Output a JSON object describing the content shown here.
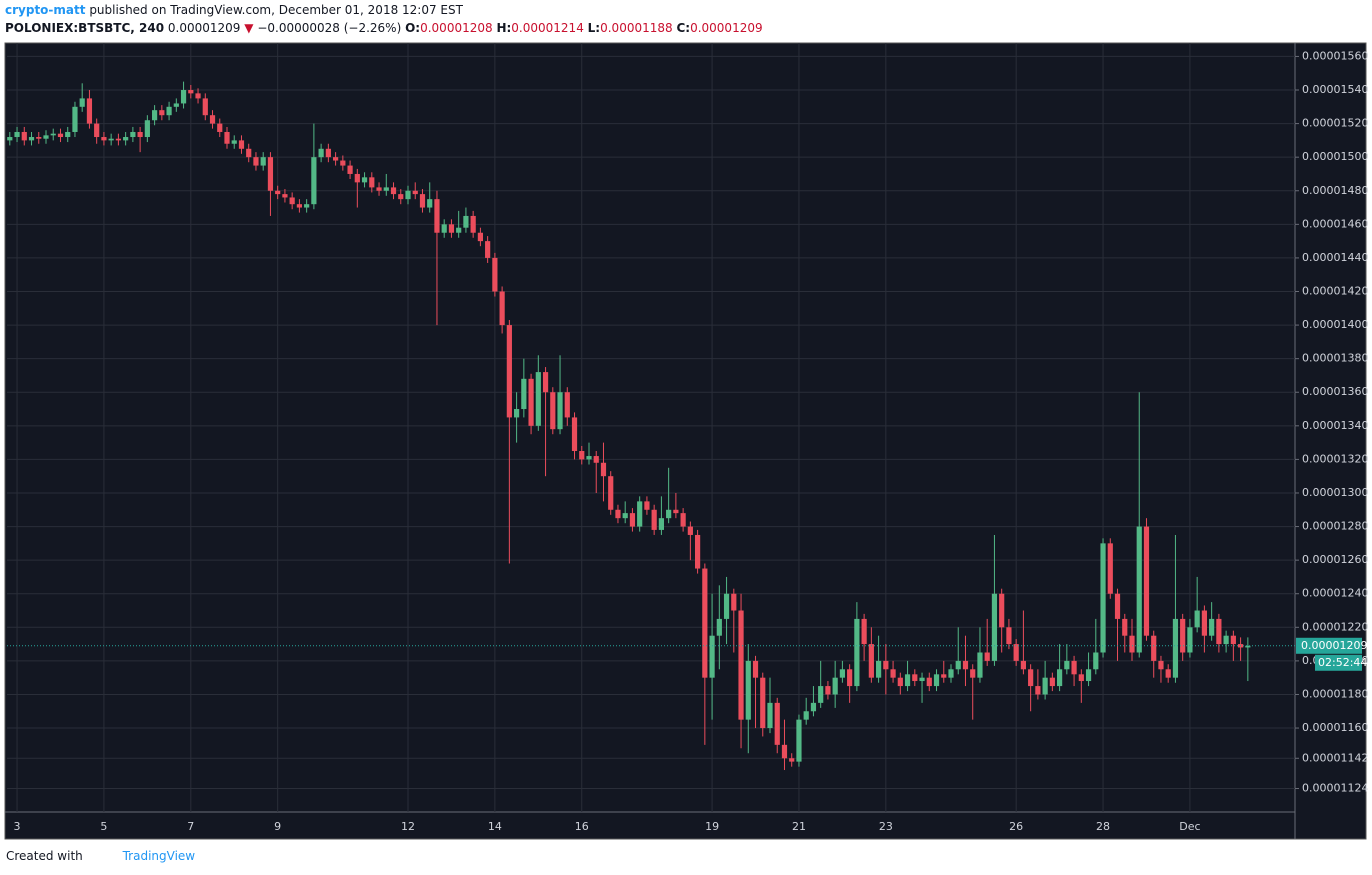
{
  "header": {
    "author": "crypto-matt",
    "published": "published on TradingView.com, December 01, 2018 12:07 EST",
    "symbol": "POLONIEX:BTSBTC, 240",
    "price": "0.00001209",
    "arrow": "▼",
    "change": "−0.00000028 (−2.26%)",
    "o_label": "O:",
    "o": "0.00001208",
    "h_label": "H:",
    "h": "0.00001214",
    "l_label": "L:",
    "l": "0.00001188",
    "c_label": "C:",
    "c": "0.00001209"
  },
  "chart_data": {
    "type": "candlestick",
    "up_color": "#53b987",
    "down_color": "#eb4d5c",
    "grid": true,
    "last_price_label": "0.00001209",
    "countdown": "02:52:44",
    "ylim": [
      1.568e-05,
      1.11e-05
    ],
    "yticks": [
      {
        "value": 1.56e-05,
        "label": "0.00001560"
      },
      {
        "value": 1.54e-05,
        "label": "0.00001540"
      },
      {
        "value": 1.52e-05,
        "label": "0.00001520"
      },
      {
        "value": 1.5e-05,
        "label": "0.00001500"
      },
      {
        "value": 1.48e-05,
        "label": "0.00001480"
      },
      {
        "value": 1.46e-05,
        "label": "0.00001460"
      },
      {
        "value": 1.44e-05,
        "label": "0.00001440"
      },
      {
        "value": 1.42e-05,
        "label": "0.00001420"
      },
      {
        "value": 1.4e-05,
        "label": "0.00001400"
      },
      {
        "value": 1.38e-05,
        "label": "0.00001380"
      },
      {
        "value": 1.36e-05,
        "label": "0.00001360"
      },
      {
        "value": 1.34e-05,
        "label": "0.00001340"
      },
      {
        "value": 1.32e-05,
        "label": "0.00001320"
      },
      {
        "value": 1.3e-05,
        "label": "0.00001300"
      },
      {
        "value": 1.28e-05,
        "label": "0.00001280"
      },
      {
        "value": 1.26e-05,
        "label": "0.00001260"
      },
      {
        "value": 1.24e-05,
        "label": "0.00001240"
      },
      {
        "value": 1.22e-05,
        "label": "0.00001220"
      },
      {
        "value": 1.2e-05,
        "label": "0.00001200"
      },
      {
        "value": 1.18e-05,
        "label": "0.00001180"
      },
      {
        "value": 1.16e-05,
        "label": "0.00001160"
      },
      {
        "value": 1.142e-05,
        "label": "0.00001142"
      },
      {
        "value": 1.124e-05,
        "label": "0.00001124"
      }
    ],
    "categories": [
      null,
      "3",
      null,
      null,
      null,
      null,
      null,
      null,
      null,
      null,
      null,
      null,
      null,
      "5",
      null,
      null,
      null,
      null,
      null,
      null,
      null,
      null,
      null,
      null,
      null,
      "7",
      null,
      null,
      null,
      null,
      null,
      null,
      null,
      null,
      null,
      null,
      null,
      "9",
      null,
      null,
      null,
      null,
      null,
      null,
      null,
      null,
      null,
      null,
      null,
      null,
      null,
      null,
      null,
      null,
      null,
      "12",
      null,
      null,
      null,
      null,
      null,
      null,
      null,
      null,
      null,
      null,
      null,
      "14",
      null,
      null,
      null,
      null,
      null,
      null,
      null,
      null,
      null,
      null,
      null,
      "16",
      null,
      null,
      null,
      null,
      null,
      null,
      null,
      null,
      null,
      null,
      null,
      null,
      null,
      null,
      null,
      null,
      null,
      "19",
      null,
      null,
      null,
      null,
      null,
      null,
      null,
      null,
      null,
      null,
      null,
      "21",
      null,
      null,
      null,
      null,
      null,
      null,
      null,
      null,
      null,
      null,
      null,
      "23",
      null,
      null,
      null,
      null,
      null,
      null,
      null,
      null,
      null,
      null,
      null,
      null,
      null,
      null,
      null,
      null,
      null,
      "26",
      null,
      null,
      null,
      null,
      null,
      null,
      null,
      null,
      null,
      null,
      null,
      "28",
      null,
      null,
      null,
      null,
      null,
      null,
      null,
      null,
      null,
      null,
      null,
      "Dec",
      null,
      null,
      null,
      null,
      null,
      null,
      null,
      null
    ],
    "open": [
      1.51e-05,
      1.512e-05,
      1.515e-05,
      1.51e-05,
      1.512e-05,
      1.511e-05,
      1.513e-05,
      1.514e-05,
      1.512e-05,
      1.515e-05,
      1.53e-05,
      1.535e-05,
      1.52e-05,
      1.512e-05,
      1.51e-05,
      1.511e-05,
      1.51e-05,
      1.512e-05,
      1.515e-05,
      1.512e-05,
      1.522e-05,
      1.528e-05,
      1.525e-05,
      1.53e-05,
      1.532e-05,
      1.54e-05,
      1.538e-05,
      1.535e-05,
      1.525e-05,
      1.52e-05,
      1.515e-05,
      1.508e-05,
      1.51e-05,
      1.505e-05,
      1.5e-05,
      1.495e-05,
      1.5e-05,
      1.48e-05,
      1.478e-05,
      1.476e-05,
      1.472e-05,
      1.47e-05,
      1.472e-05,
      1.5e-05,
      1.505e-05,
      1.5e-05,
      1.498e-05,
      1.495e-05,
      1.49e-05,
      1.485e-05,
      1.488e-05,
      1.482e-05,
      1.48e-05,
      1.482e-05,
      1.478e-05,
      1.475e-05,
      1.48e-05,
      1.478e-05,
      1.47e-05,
      1.475e-05,
      1.455e-05,
      1.46e-05,
      1.455e-05,
      1.458e-05,
      1.465e-05,
      1.455e-05,
      1.45e-05,
      1.44e-05,
      1.42e-05,
      1.4e-05,
      1.345e-05,
      1.35e-05,
      1.368e-05,
      1.34e-05,
      1.372e-05,
      1.36e-05,
      1.338e-05,
      1.36e-05,
      1.345e-05,
      1.325e-05,
      1.32e-05,
      1.322e-05,
      1.318e-05,
      1.31e-05,
      1.29e-05,
      1.285e-05,
      1.288e-05,
      1.28e-05,
      1.295e-05,
      1.29e-05,
      1.278e-05,
      1.285e-05,
      1.29e-05,
      1.288e-05,
      1.28e-05,
      1.275e-05,
      1.255e-05,
      1.19e-05,
      1.215e-05,
      1.225e-05,
      1.24e-05,
      1.23e-05,
      1.165e-05,
      1.2e-05,
      1.19e-05,
      1.16e-05,
      1.175e-05,
      1.15e-05,
      1.142e-05,
      1.14e-05,
      1.165e-05,
      1.17e-05,
      1.175e-05,
      1.185e-05,
      1.18e-05,
      1.19e-05,
      1.195e-05,
      1.185e-05,
      1.225e-05,
      1.21e-05,
      1.19e-05,
      1.2e-05,
      1.195e-05,
      1.19e-05,
      1.185e-05,
      1.192e-05,
      1.188e-05,
      1.19e-05,
      1.185e-05,
      1.192e-05,
      1.19e-05,
      1.195e-05,
      1.2e-05,
      1.195e-05,
      1.19e-05,
      1.205e-05,
      1.2e-05,
      1.24e-05,
      1.22e-05,
      1.21e-05,
      1.2e-05,
      1.195e-05,
      1.185e-05,
      1.18e-05,
      1.19e-05,
      1.185e-05,
      1.195e-05,
      1.2e-05,
      1.192e-05,
      1.188e-05,
      1.195e-05,
      1.205e-05,
      1.27e-05,
      1.24e-05,
      1.225e-05,
      1.215e-05,
      1.205e-05,
      1.28e-05,
      1.215e-05,
      1.2e-05,
      1.195e-05,
      1.19e-05,
      1.225e-05,
      1.205e-05,
      1.22e-05,
      1.23e-05,
      1.215e-05,
      1.225e-05,
      1.21e-05,
      1.215e-05,
      1.21e-05,
      1.208e-05
    ],
    "high": [
      1.515e-05,
      1.518e-05,
      1.518e-05,
      1.515e-05,
      1.515e-05,
      1.516e-05,
      1.517e-05,
      1.517e-05,
      1.518e-05,
      1.533e-05,
      1.544e-05,
      1.54e-05,
      1.523e-05,
      1.515e-05,
      1.514e-05,
      1.514e-05,
      1.515e-05,
      1.518e-05,
      1.518e-05,
      1.525e-05,
      1.531e-05,
      1.531e-05,
      1.533e-05,
      1.535e-05,
      1.545e-05,
      1.543e-05,
      1.541e-05,
      1.538e-05,
      1.528e-05,
      1.523e-05,
      1.518e-05,
      1.513e-05,
      1.513e-05,
      1.508e-05,
      1.503e-05,
      1.503e-05,
      1.503e-05,
      1.483e-05,
      1.481e-05,
      1.479e-05,
      1.475e-05,
      1.475e-05,
      1.52e-05,
      1.508e-05,
      1.508e-05,
      1.503e-05,
      1.501e-05,
      1.498e-05,
      1.493e-05,
      1.491e-05,
      1.491e-05,
      1.485e-05,
      1.49e-05,
      1.485e-05,
      1.481e-05,
      1.483e-05,
      1.485e-05,
      1.481e-05,
      1.485e-05,
      1.48e-05,
      1.463e-05,
      1.463e-05,
      1.468e-05,
      1.47e-05,
      1.468e-05,
      1.458e-05,
      1.453e-05,
      1.443e-05,
      1.423e-05,
      1.403e-05,
      1.36e-05,
      1.38e-05,
      1.371e-05,
      1.382e-05,
      1.375e-05,
      1.363e-05,
      1.382e-05,
      1.363e-05,
      1.348e-05,
      1.328e-05,
      1.33e-05,
      1.325e-05,
      1.33e-05,
      1.313e-05,
      1.293e-05,
      1.295e-05,
      1.291e-05,
      1.298e-05,
      1.298e-05,
      1.293e-05,
      1.298e-05,
      1.315e-05,
      1.3e-05,
      1.291e-05,
      1.283e-05,
      1.278e-05,
      1.258e-05,
      1.24e-05,
      1.245e-05,
      1.25e-05,
      1.243e-05,
      1.24e-05,
      1.21e-05,
      1.203e-05,
      1.193e-05,
      1.19e-05,
      1.178e-05,
      1.165e-05,
      1.145e-05,
      1.168e-05,
      1.178e-05,
      1.185e-05,
      1.2e-05,
      1.188e-05,
      1.2e-05,
      1.2e-05,
      1.198e-05,
      1.235e-05,
      1.228e-05,
      1.22e-05,
      1.215e-05,
      1.21e-05,
      1.2e-05,
      1.193e-05,
      1.2e-05,
      1.195e-05,
      1.193e-05,
      1.193e-05,
      1.195e-05,
      1.2e-05,
      1.198e-05,
      1.22e-05,
      1.215e-05,
      1.198e-05,
      1.22e-05,
      1.225e-05,
      1.275e-05,
      1.243e-05,
      1.225e-05,
      1.213e-05,
      1.23e-05,
      1.198e-05,
      1.195e-05,
      1.2e-05,
      1.193e-05,
      1.21e-05,
      1.21e-05,
      1.203e-05,
      1.195e-05,
      1.205e-05,
      1.225e-05,
      1.273e-05,
      1.273e-05,
      1.243e-05,
      1.228e-05,
      1.225e-05,
      1.36e-05,
      1.285e-05,
      1.218e-05,
      1.203e-05,
      1.198e-05,
      1.275e-05,
      1.228e-05,
      1.225e-05,
      1.25e-05,
      1.233e-05,
      1.235e-05,
      1.228e-05,
      1.218e-05,
      1.218e-05,
      1.214e-05,
      1.214e-05
    ],
    "low": [
      1.507e-05,
      1.509e-05,
      1.507e-05,
      1.507e-05,
      1.508e-05,
      1.508e-05,
      1.51e-05,
      1.509e-05,
      1.509e-05,
      1.512e-05,
      1.527e-05,
      1.517e-05,
      1.508e-05,
      1.507e-05,
      1.507e-05,
      1.507e-05,
      1.507e-05,
      1.509e-05,
      1.503e-05,
      1.509e-05,
      1.519e-05,
      1.522e-05,
      1.522e-05,
      1.527e-05,
      1.529e-05,
      1.535e-05,
      1.532e-05,
      1.522e-05,
      1.517e-05,
      1.512e-05,
      1.505e-05,
      1.505e-05,
      1.502e-05,
      1.497e-05,
      1.492e-05,
      1.492e-05,
      1.465e-05,
      1.475e-05,
      1.473e-05,
      1.469e-05,
      1.467e-05,
      1.467e-05,
      1.469e-05,
      1.497e-05,
      1.497e-05,
      1.495e-05,
      1.492e-05,
      1.487e-05,
      1.47e-05,
      1.482e-05,
      1.479e-05,
      1.477e-05,
      1.477e-05,
      1.475e-05,
      1.472e-05,
      1.472e-05,
      1.475e-05,
      1.467e-05,
      1.467e-05,
      1.4e-05,
      1.452e-05,
      1.452e-05,
      1.452e-05,
      1.455e-05,
      1.452e-05,
      1.447e-05,
      1.437e-05,
      1.417e-05,
      1.395e-05,
      1.258e-05,
      1.33e-05,
      1.345e-05,
      1.335e-05,
      1.337e-05,
      1.31e-05,
      1.335e-05,
      1.335e-05,
      1.34e-05,
      1.32e-05,
      1.317e-05,
      1.317e-05,
      1.3e-05,
      1.295e-05,
      1.287e-05,
      1.282e-05,
      1.282e-05,
      1.277e-05,
      1.277e-05,
      1.287e-05,
      1.275e-05,
      1.275e-05,
      1.282e-05,
      1.285e-05,
      1.277e-05,
      1.26e-05,
      1.252e-05,
      1.15e-05,
      1.165e-05,
      1.195e-05,
      1.21e-05,
      1.205e-05,
      1.148e-05,
      1.145e-05,
      1.16e-05,
      1.155e-05,
      1.157e-05,
      1.145e-05,
      1.135e-05,
      1.137e-05,
      1.137e-05,
      1.162e-05,
      1.167e-05,
      1.172e-05,
      1.177e-05,
      1.172e-05,
      1.187e-05,
      1.175e-05,
      1.182e-05,
      1.2e-05,
      1.187e-05,
      1.187e-05,
      1.18e-05,
      1.187e-05,
      1.18e-05,
      1.182e-05,
      1.185e-05,
      1.175e-05,
      1.182e-05,
      1.182e-05,
      1.187e-05,
      1.187e-05,
      1.192e-05,
      1.185e-05,
      1.165e-05,
      1.187e-05,
      1.197e-05,
      1.197e-05,
      1.205e-05,
      1.207e-05,
      1.197e-05,
      1.192e-05,
      1.17e-05,
      1.177e-05,
      1.177e-05,
      1.182e-05,
      1.182e-05,
      1.192e-05,
      1.185e-05,
      1.175e-05,
      1.185e-05,
      1.192e-05,
      1.202e-05,
      1.237e-05,
      1.2e-05,
      1.205e-05,
      1.2e-05,
      1.202e-05,
      1.212e-05,
      1.19e-05,
      1.187e-05,
      1.187e-05,
      1.187e-05,
      1.2e-05,
      1.202e-05,
      1.217e-05,
      1.205e-05,
      1.212e-05,
      1.205e-05,
      1.205e-05,
      1.2e-05,
      1.2e-05,
      1.188e-05
    ],
    "close": [
      1.512e-05,
      1.515e-05,
      1.51e-05,
      1.512e-05,
      1.511e-05,
      1.513e-05,
      1.514e-05,
      1.512e-05,
      1.515e-05,
      1.53e-05,
      1.535e-05,
      1.52e-05,
      1.512e-05,
      1.51e-05,
      1.511e-05,
      1.51e-05,
      1.512e-05,
      1.515e-05,
      1.512e-05,
      1.522e-05,
      1.528e-05,
      1.525e-05,
      1.53e-05,
      1.532e-05,
      1.54e-05,
      1.538e-05,
      1.535e-05,
      1.525e-05,
      1.52e-05,
      1.515e-05,
      1.508e-05,
      1.51e-05,
      1.505e-05,
      1.5e-05,
      1.495e-05,
      1.5e-05,
      1.48e-05,
      1.478e-05,
      1.476e-05,
      1.472e-05,
      1.47e-05,
      1.472e-05,
      1.5e-05,
      1.505e-05,
      1.5e-05,
      1.498e-05,
      1.495e-05,
      1.49e-05,
      1.485e-05,
      1.488e-05,
      1.482e-05,
      1.48e-05,
      1.482e-05,
      1.478e-05,
      1.475e-05,
      1.48e-05,
      1.478e-05,
      1.47e-05,
      1.475e-05,
      1.455e-05,
      1.46e-05,
      1.455e-05,
      1.458e-05,
      1.465e-05,
      1.455e-05,
      1.45e-05,
      1.44e-05,
      1.42e-05,
      1.4e-05,
      1.345e-05,
      1.35e-05,
      1.368e-05,
      1.34e-05,
      1.372e-05,
      1.36e-05,
      1.338e-05,
      1.36e-05,
      1.345e-05,
      1.325e-05,
      1.32e-05,
      1.322e-05,
      1.318e-05,
      1.31e-05,
      1.29e-05,
      1.285e-05,
      1.288e-05,
      1.28e-05,
      1.295e-05,
      1.29e-05,
      1.278e-05,
      1.285e-05,
      1.29e-05,
      1.288e-05,
      1.28e-05,
      1.275e-05,
      1.255e-05,
      1.19e-05,
      1.215e-05,
      1.225e-05,
      1.24e-05,
      1.23e-05,
      1.165e-05,
      1.2e-05,
      1.19e-05,
      1.16e-05,
      1.175e-05,
      1.15e-05,
      1.142e-05,
      1.14e-05,
      1.165e-05,
      1.17e-05,
      1.175e-05,
      1.185e-05,
      1.18e-05,
      1.19e-05,
      1.195e-05,
      1.185e-05,
      1.225e-05,
      1.21e-05,
      1.19e-05,
      1.2e-05,
      1.195e-05,
      1.19e-05,
      1.185e-05,
      1.192e-05,
      1.188e-05,
      1.19e-05,
      1.185e-05,
      1.192e-05,
      1.19e-05,
      1.195e-05,
      1.2e-05,
      1.195e-05,
      1.19e-05,
      1.205e-05,
      1.2e-05,
      1.24e-05,
      1.22e-05,
      1.21e-05,
      1.2e-05,
      1.195e-05,
      1.185e-05,
      1.18e-05,
      1.19e-05,
      1.185e-05,
      1.195e-05,
      1.2e-05,
      1.192e-05,
      1.188e-05,
      1.195e-05,
      1.205e-05,
      1.27e-05,
      1.24e-05,
      1.225e-05,
      1.215e-05,
      1.205e-05,
      1.28e-05,
      1.215e-05,
      1.2e-05,
      1.195e-05,
      1.19e-05,
      1.225e-05,
      1.205e-05,
      1.22e-05,
      1.23e-05,
      1.215e-05,
      1.225e-05,
      1.21e-05,
      1.215e-05,
      1.21e-05,
      1.208e-05,
      1.209e-05
    ]
  },
  "footer": {
    "created": "Created with",
    "brand": "TradingView"
  }
}
